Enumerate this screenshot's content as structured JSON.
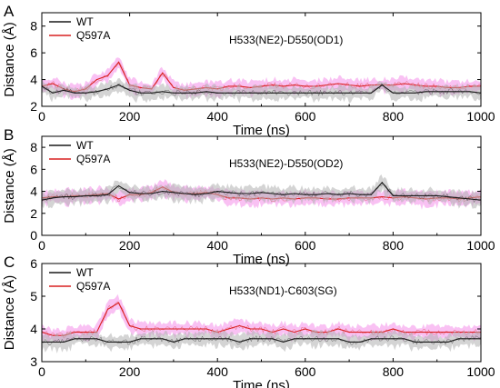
{
  "colors": {
    "wt_line": "#1a1a1a",
    "wt_band": "#b0b0b0",
    "q597a_line": "#d92020",
    "q597a_band": "#f7a6ee"
  },
  "chart_data": [
    {
      "type": "line",
      "panel": "A",
      "annotation": "H533(NE2)-D550(OD1)",
      "xlabel": "Time (ns)",
      "ylabel": "Distance (Å)",
      "xlim": [
        0,
        1000
      ],
      "ylim": [
        2,
        9
      ],
      "xticks": [
        0,
        200,
        400,
        600,
        800,
        1000
      ],
      "yticks": [
        2,
        4,
        6,
        8
      ],
      "legend_position": "top-left",
      "x": [
        0,
        25,
        50,
        75,
        100,
        125,
        150,
        175,
        200,
        225,
        250,
        275,
        300,
        325,
        350,
        375,
        400,
        425,
        450,
        475,
        500,
        525,
        550,
        575,
        600,
        625,
        650,
        675,
        700,
        725,
        750,
        775,
        800,
        825,
        850,
        875,
        900,
        925,
        950,
        975,
        1000
      ],
      "series": [
        {
          "name": "WT",
          "values": [
            3.5,
            3.0,
            3.2,
            3.0,
            3.0,
            3.1,
            3.3,
            3.6,
            3.2,
            3.0,
            3.0,
            3.1,
            3.0,
            3.0,
            3.0,
            3.1,
            3.0,
            3.0,
            3.0,
            3.0,
            3.0,
            3.0,
            3.0,
            3.0,
            3.0,
            3.0,
            3.0,
            3.0,
            3.0,
            3.0,
            3.0,
            3.6,
            3.0,
            3.0,
            3.0,
            3.1,
            3.1,
            3.1,
            3.1,
            3.1,
            3.0
          ]
        },
        {
          "name": "Q597A",
          "values": [
            3.5,
            3.7,
            3.3,
            3.1,
            3.3,
            4.0,
            4.3,
            5.3,
            3.6,
            3.4,
            3.3,
            4.5,
            3.4,
            3.2,
            3.3,
            3.4,
            3.3,
            3.5,
            3.5,
            3.4,
            3.5,
            3.6,
            3.5,
            3.6,
            3.5,
            3.5,
            3.6,
            3.7,
            3.6,
            3.5,
            3.6,
            3.6,
            3.6,
            3.7,
            3.6,
            3.5,
            3.5,
            3.4,
            3.4,
            3.5,
            3.5
          ]
        }
      ]
    },
    {
      "type": "line",
      "panel": "B",
      "annotation": "H533(NE2)-D550(OD2)",
      "xlabel": "Time (ns)",
      "ylabel": "Distance (Å)",
      "xlim": [
        0,
        1000
      ],
      "ylim": [
        0,
        9
      ],
      "xticks": [
        0,
        200,
        400,
        600,
        800,
        1000
      ],
      "yticks": [
        0,
        2,
        4,
        6,
        8
      ],
      "legend_position": "top-left",
      "x": [
        0,
        25,
        50,
        75,
        100,
        125,
        150,
        175,
        200,
        225,
        250,
        275,
        300,
        325,
        350,
        375,
        400,
        425,
        450,
        475,
        500,
        525,
        550,
        575,
        600,
        625,
        650,
        675,
        700,
        725,
        750,
        775,
        800,
        825,
        850,
        875,
        900,
        925,
        950,
        975,
        1000
      ],
      "series": [
        {
          "name": "WT",
          "values": [
            3.2,
            3.4,
            3.5,
            3.5,
            3.6,
            3.6,
            3.7,
            4.5,
            3.9,
            3.8,
            3.8,
            4.0,
            3.9,
            3.8,
            3.7,
            3.8,
            4.0,
            3.9,
            3.8,
            3.8,
            3.9,
            3.8,
            3.7,
            3.8,
            3.7,
            3.7,
            3.8,
            3.7,
            3.8,
            3.7,
            3.7,
            4.8,
            3.6,
            3.6,
            3.6,
            3.6,
            3.6,
            3.5,
            3.4,
            3.3,
            3.2
          ]
        },
        {
          "name": "Q597A",
          "values": [
            3.4,
            3.5,
            3.5,
            3.6,
            3.6,
            3.7,
            3.8,
            3.3,
            3.7,
            3.7,
            3.9,
            4.4,
            3.9,
            3.8,
            3.8,
            3.9,
            3.7,
            3.4,
            3.4,
            3.3,
            3.4,
            3.3,
            3.4,
            3.3,
            3.4,
            3.4,
            3.3,
            3.3,
            3.4,
            3.4,
            3.4,
            3.5,
            3.4,
            3.5,
            3.4,
            3.3,
            3.4,
            3.4,
            3.3,
            3.4,
            3.5
          ]
        }
      ]
    },
    {
      "type": "line",
      "panel": "C",
      "annotation": "H533(ND1)-C603(SG)",
      "xlabel": "Time (ns)",
      "ylabel": "Distance (Å)",
      "xlim": [
        0,
        1000
      ],
      "ylim": [
        3,
        6
      ],
      "xticks": [
        0,
        200,
        400,
        600,
        800,
        1000
      ],
      "yticks": [
        3,
        4,
        5,
        6
      ],
      "legend_position": "top-left",
      "x": [
        0,
        25,
        50,
        75,
        100,
        125,
        150,
        175,
        200,
        225,
        250,
        275,
        300,
        325,
        350,
        375,
        400,
        425,
        450,
        475,
        500,
        525,
        550,
        575,
        600,
        625,
        650,
        675,
        700,
        725,
        750,
        775,
        800,
        825,
        850,
        875,
        900,
        925,
        950,
        975,
        1000
      ],
      "series": [
        {
          "name": "WT",
          "values": [
            3.6,
            3.6,
            3.6,
            3.7,
            3.7,
            3.7,
            3.6,
            3.6,
            3.6,
            3.7,
            3.7,
            3.7,
            3.6,
            3.7,
            3.7,
            3.7,
            3.7,
            3.7,
            3.6,
            3.7,
            3.7,
            3.7,
            3.6,
            3.7,
            3.7,
            3.7,
            3.7,
            3.7,
            3.6,
            3.6,
            3.7,
            3.7,
            3.7,
            3.7,
            3.6,
            3.6,
            3.6,
            3.6,
            3.7,
            3.7,
            3.7
          ]
        },
        {
          "name": "Q597A",
          "values": [
            3.9,
            3.8,
            3.8,
            3.9,
            3.9,
            3.9,
            4.6,
            4.8,
            4.1,
            4.0,
            4.0,
            4.0,
            4.0,
            4.0,
            4.0,
            4.0,
            3.9,
            4.0,
            4.1,
            4.0,
            4.0,
            3.9,
            4.0,
            3.9,
            4.0,
            3.9,
            3.9,
            4.0,
            3.9,
            3.9,
            3.9,
            3.9,
            4.0,
            3.9,
            3.9,
            3.9,
            3.9,
            3.9,
            3.9,
            3.9,
            3.9
          ]
        }
      ]
    }
  ]
}
